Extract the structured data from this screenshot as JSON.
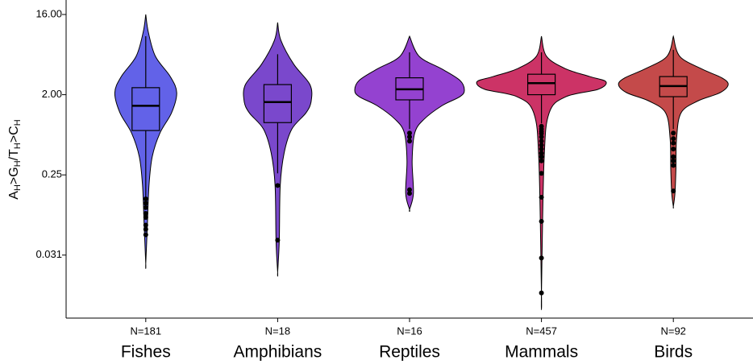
{
  "chart_data": {
    "type": "violin",
    "y_label": [
      "A",
      "H",
      ">G",
      "H",
      "/T",
      "H",
      ">C",
      "H"
    ],
    "log_scale": true,
    "ylim": [
      0.0061,
      23.3
    ],
    "yticks": [
      {
        "value": 16,
        "label": "16.00"
      },
      {
        "value": 2,
        "label": "2.00"
      },
      0.25,
      {
        "value": 0.03125,
        "label": "0.031"
      }
    ],
    "categories": [
      "Fishes",
      "Amphibians",
      "Reptiles",
      "Mammals",
      "Birds"
    ],
    "groups": [
      {
        "n_label": "N=181",
        "color": "#6262e8",
        "whisker_low": 0.14,
        "q1": 0.79,
        "median": 1.5,
        "q3": 2.4,
        "whisker_high": 9.1,
        "outliers": [
          0.134,
          0.12,
          0.107,
          0.092,
          0.083,
          0.068,
          0.061,
          0.053
        ],
        "violin": {
          "y": [
            16,
            10.1,
            5.4,
            3.2,
            2.1,
            1.25,
            0.74,
            0.4,
            0.19,
            0.068,
            0.025
          ],
          "width": [
            0,
            0.04,
            0.15,
            0.38,
            0.48,
            0.4,
            0.22,
            0.1,
            0.05,
            0.025,
            0
          ]
        }
      },
      {
        "n_label": "N=18",
        "color": "#7a48cc",
        "whisker_low": 0.26,
        "q1": 0.97,
        "median": 1.65,
        "q3": 2.6,
        "whisker_high": 5.7,
        "outliers": [
          0.19,
          0.046
        ],
        "violin": {
          "y": [
            13,
            8.2,
            4.4,
            2.6,
            1.7,
            1.25,
            0.82,
            0.44,
            0.19,
            0.045,
            0.02
          ],
          "width": [
            0,
            0.05,
            0.25,
            0.5,
            0.52,
            0.44,
            0.22,
            0.1,
            0.04,
            0.025,
            0
          ]
        }
      },
      {
        "n_label": "N=16",
        "color": "#9442d0",
        "whisker_low": 0.82,
        "q1": 1.75,
        "median": 2.3,
        "q3": 3.1,
        "whisker_high": 6.0,
        "outliers": [
          0.74,
          0.67,
          0.6,
          0.17,
          0.155
        ],
        "violin": {
          "y": [
            9.1,
            5.4,
            3.9,
            2.9,
            2.25,
            1.9,
            1.5,
            1.05,
            0.74,
            0.36,
            0.155,
            0.102
          ],
          "width": [
            0,
            0.15,
            0.5,
            0.78,
            0.85,
            0.78,
            0.5,
            0.22,
            0.08,
            0.04,
            0.06,
            0
          ]
        }
      },
      {
        "n_label": "N=457",
        "color": "#cc3366",
        "whisker_low": 0.95,
        "q1": 2.0,
        "median": 2.7,
        "q3": 3.4,
        "whisker_high": 6.0,
        "outliers": [
          0.88,
          0.82,
          0.77,
          0.73,
          0.67,
          0.6,
          0.54,
          0.49,
          0.44,
          0.4,
          0.36,
          0.26,
          0.14,
          0.075,
          0.029,
          0.0117
        ],
        "violin": {
          "y": [
            9.1,
            5.4,
            3.9,
            3.2,
            2.8,
            2.3,
            1.9,
            1.25,
            0.36,
            0.0116
          ],
          "width": [
            0,
            0.08,
            0.38,
            0.75,
            1.0,
            0.88,
            0.38,
            0.12,
            0.04,
            0
          ]
        }
      },
      {
        "n_label": "N=92",
        "color": "#c44a4a",
        "whisker_low": 0.82,
        "q1": 1.9,
        "median": 2.5,
        "q3": 3.2,
        "whisker_high": 6.4,
        "outliers": [
          0.74,
          0.64,
          0.57,
          0.49,
          0.4,
          0.36,
          0.32,
          0.165
        ],
        "violin": {
          "y": [
            9.1,
            5.4,
            3.9,
            3.1,
            2.6,
            2.1,
            1.7,
            1.25,
            0.64,
            0.29,
            0.155,
            0.11
          ],
          "width": [
            0,
            0.1,
            0.44,
            0.75,
            0.85,
            0.72,
            0.38,
            0.12,
            0.05,
            0.04,
            0.025,
            0
          ]
        }
      }
    ]
  }
}
